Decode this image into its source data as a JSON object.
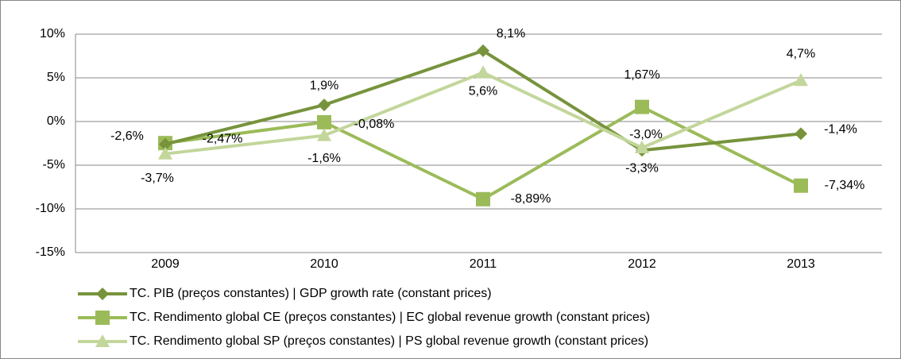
{
  "chart_data": {
    "type": "line",
    "categories": [
      "2009",
      "2010",
      "2011",
      "2012",
      "2013"
    ],
    "series": [
      {
        "name": "TC. PIB (preços constantes) | GDP growth rate (constant prices)",
        "color": "#77933c",
        "marker": "diamond",
        "values": [
          -2.6,
          1.9,
          8.1,
          -3.3,
          -1.4
        ],
        "value_labels": [
          "-2,6%",
          "1,9%",
          "8,1%",
          "-3,3%",
          "-1,4%"
        ]
      },
      {
        "name": "TC. Rendimento global CE (preços constantes) | EC global revenue growth (constant prices)",
        "color": "#9bbb59",
        "marker": "square",
        "values": [
          -2.47,
          -0.08,
          -8.89,
          1.67,
          -7.34
        ],
        "value_labels": [
          "-2,47%",
          "-0,08%",
          "-8,89%",
          "1,67%",
          "-7,34%"
        ]
      },
      {
        "name": "TC. Rendimento global SP (preços constantes) | PS global revenue growth (constant prices)",
        "color": "#c3d69b",
        "marker": "triangle",
        "values": [
          -3.7,
          -1.6,
          5.6,
          -3.0,
          4.7
        ],
        "value_labels": [
          "-3,7%",
          "-1,6%",
          "5,6%",
          "-3,0%",
          "4,7%"
        ]
      }
    ],
    "ylim": [
      -15,
      10
    ],
    "yticks": [
      {
        "value": -15,
        "label": "-15%"
      },
      {
        "value": -10,
        "label": "-10%"
      },
      {
        "value": -5,
        "label": "-5%"
      },
      {
        "value": 0,
        "label": "0%"
      },
      {
        "value": 5,
        "label": "5%"
      },
      {
        "value": 10,
        "label": "10%"
      }
    ],
    "grid": true,
    "legend": "bottom"
  }
}
